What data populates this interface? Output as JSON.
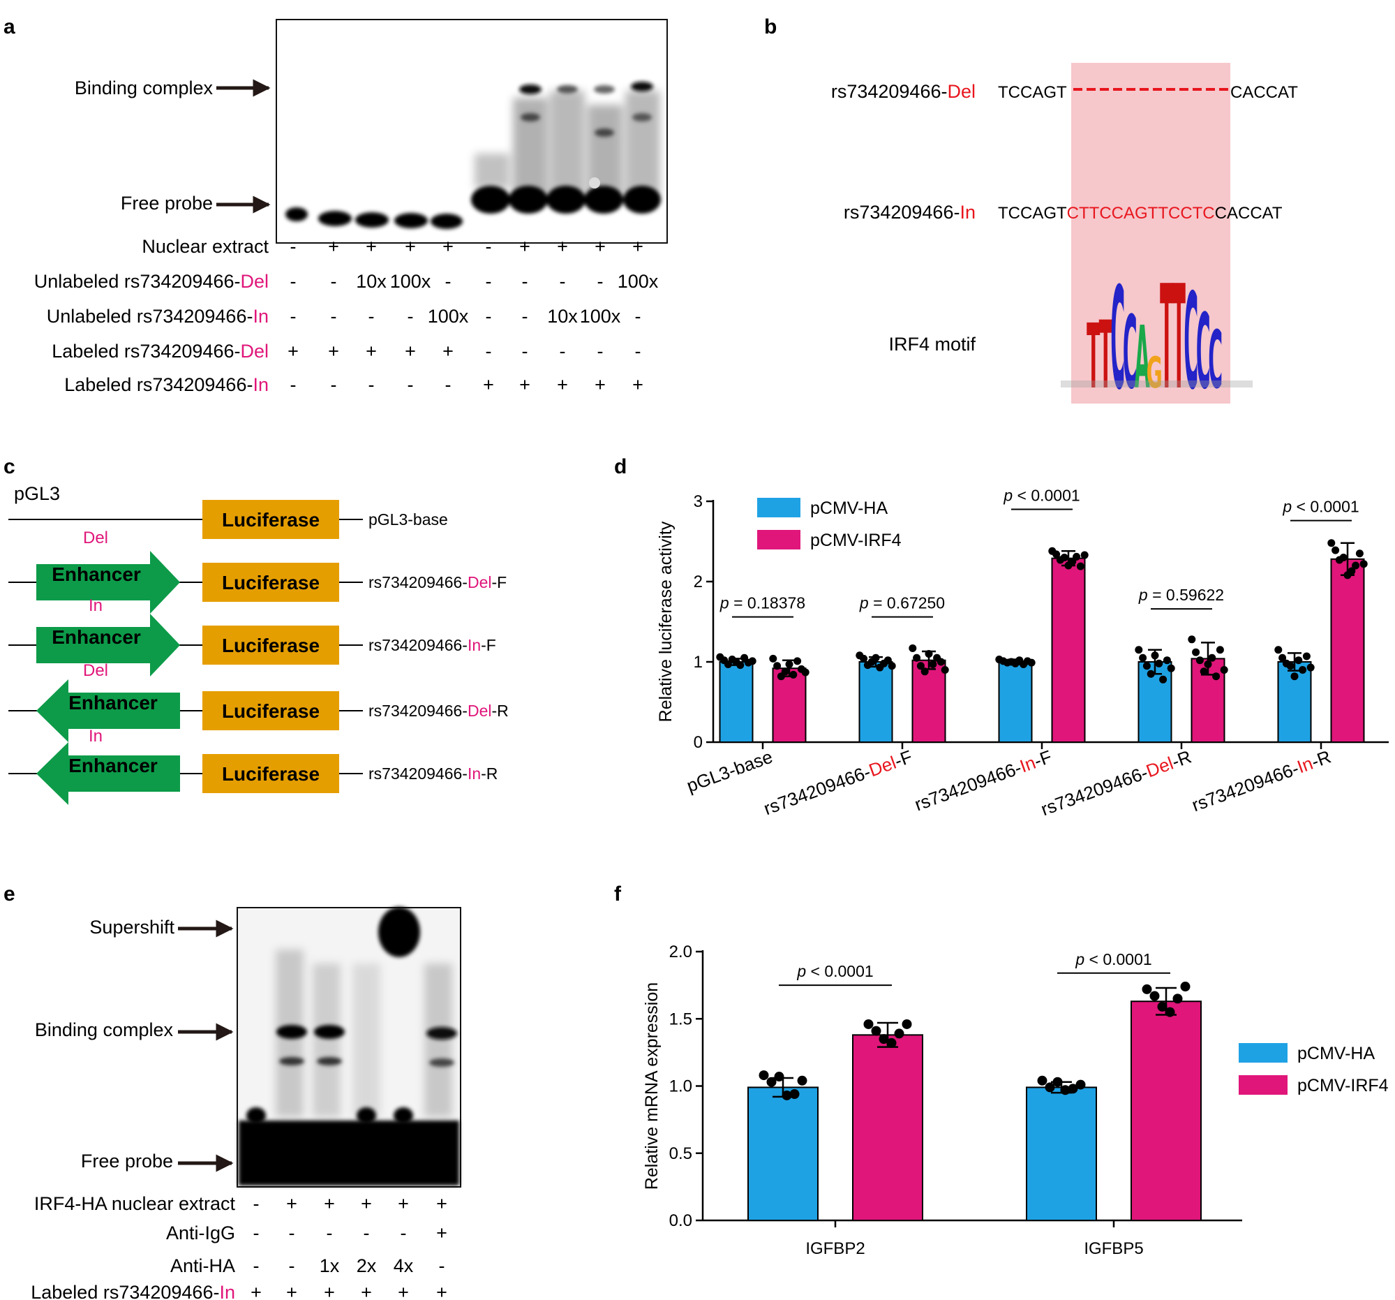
{
  "panel_labels": {
    "a": "a",
    "b": "b",
    "c": "c",
    "d": "d",
    "e": "e",
    "f": "f"
  },
  "colors": {
    "blue": "#1FA2E4",
    "magenta": "#E0167A",
    "red": "#E8161E",
    "gold": "#E59E00",
    "green": "#0D9B49",
    "hilite": "#F6C7CB"
  },
  "panel_a": {
    "arrows": {
      "binding": "Binding complex",
      "free": "Free probe"
    },
    "row_labels": [
      {
        "pre": "Nuclear extract",
        "hl": "",
        "post": ""
      },
      {
        "pre": "Unlabeled rs734209466-",
        "hl": "Del",
        "post": ""
      },
      {
        "pre": "Unlabeled rs734209466-",
        "hl": "In",
        "post": ""
      },
      {
        "pre": "Labeled rs734209466-",
        "hl": "Del",
        "post": ""
      },
      {
        "pre": "Labeled rs734209466-",
        "hl": "In",
        "post": ""
      }
    ],
    "lane_values": [
      [
        "-",
        "+",
        "+",
        "+",
        "+",
        "-",
        "+",
        "+",
        "+",
        "+"
      ],
      [
        "-",
        "-",
        "10x",
        "100x",
        "-",
        "-",
        "-",
        "-",
        "-",
        "100x"
      ],
      [
        "-",
        "-",
        "-",
        "-",
        "100x",
        "-",
        "-",
        "10x",
        "100x",
        "-"
      ],
      [
        "+",
        "+",
        "+",
        "+",
        "+",
        "-",
        "-",
        "-",
        "-",
        "-"
      ],
      [
        "-",
        "-",
        "-",
        "-",
        "-",
        "+",
        "+",
        "+",
        "+",
        "+"
      ]
    ]
  },
  "panel_b": {
    "seq_del": {
      "label_pre": "rs734209466-",
      "label_hl": "Del",
      "left": "TCCAGT",
      "right": "CACCAT"
    },
    "seq_in": {
      "label_pre": "rs734209466-",
      "label_hl": "In",
      "left": "TCCAGT",
      "insert": "CTTCCAGTTCCTC",
      "right": "CACCAT"
    },
    "motif_label": "IRF4 motif",
    "motif_letters": [
      "T",
      "T",
      "C",
      "C",
      "A",
      "G",
      "T",
      "T",
      "C",
      "C",
      "C"
    ]
  },
  "panel_c": {
    "vector_label": "pGL3",
    "luciferase": "Luciferase",
    "enhancer": "Enhancer",
    "constructs": [
      {
        "name_pre": "pGL3-base",
        "name_hl": "",
        "name_post": "",
        "allele": "",
        "dir": "none"
      },
      {
        "name_pre": "rs734209466-",
        "name_hl": "Del",
        "name_post": "-F",
        "allele": "Del",
        "dir": "F"
      },
      {
        "name_pre": "rs734209466-",
        "name_hl": "In",
        "name_post": "-F",
        "allele": "In",
        "dir": "F"
      },
      {
        "name_pre": "rs734209466-",
        "name_hl": "Del",
        "name_post": "-R",
        "allele": "Del",
        "dir": "R"
      },
      {
        "name_pre": "rs734209466-",
        "name_hl": "In",
        "name_post": "-R",
        "allele": "In",
        "dir": "R"
      }
    ]
  },
  "panel_e": {
    "arrows": {
      "supershift": "Supershift",
      "binding": "Binding complex",
      "free": "Free probe"
    },
    "row_labels": [
      {
        "pre": "IRF4-HA nuclear extract",
        "hl": ""
      },
      {
        "pre": "Anti-IgG",
        "hl": ""
      },
      {
        "pre": "Anti-HA",
        "hl": ""
      },
      {
        "pre": "Labeled rs734209466-",
        "hl": "In"
      }
    ],
    "lane_values": [
      [
        "-",
        "+",
        "+",
        "+",
        "+",
        "+"
      ],
      [
        "-",
        "-",
        "-",
        "-",
        "-",
        "+"
      ],
      [
        "-",
        "-",
        "1x",
        "2x",
        "4x",
        "-"
      ],
      [
        "+",
        "+",
        "+",
        "+",
        "+",
        "+"
      ]
    ]
  },
  "chart_data": [
    {
      "id": "d",
      "type": "bar",
      "ylabel": "Relative luciferase activity",
      "ylim": [
        0,
        3
      ],
      "yticks": [
        "0",
        "1",
        "2",
        "3"
      ],
      "categories": [
        {
          "pre": "pGL3-base",
          "hl": "",
          "post": ""
        },
        {
          "pre": "rs734209466-",
          "hl": "Del",
          "post": "-F"
        },
        {
          "pre": "rs734209466-",
          "hl": "In",
          "post": "-F"
        },
        {
          "pre": "rs734209466-",
          "hl": "Del",
          "post": "-R"
        },
        {
          "pre": "rs734209466-",
          "hl": "In",
          "post": "-R"
        }
      ],
      "series": [
        {
          "name": "pCMV-HA",
          "values": [
            1.0,
            1.0,
            1.0,
            1.0,
            1.0
          ],
          "errors": [
            0.04,
            0.06,
            0.03,
            0.15,
            0.11
          ]
        },
        {
          "name": "pCMV-IRF4",
          "values": [
            0.92,
            1.02,
            2.29,
            1.04,
            2.28
          ],
          "errors": [
            0.1,
            0.11,
            0.09,
            0.2,
            0.2
          ]
        }
      ],
      "points": [
        [
          [
            1.06,
            1.02,
            0.97,
            1.03,
            1.0,
            0.96,
            1.05,
            0.99,
            1.01
          ],
          [
            1.04,
            0.95,
            0.82,
            0.88,
            0.97,
            0.84,
            1.01,
            0.91,
            0.87
          ]
        ],
        [
          [
            1.08,
            1.04,
            0.96,
            1.0,
            1.05,
            0.93,
            0.98,
            1.02,
            0.95
          ],
          [
            1.17,
            1.05,
            0.95,
            0.88,
            1.1,
            0.97,
            1.05,
            1.0,
            0.9
          ]
        ],
        [
          [
            1.03,
            1.01,
            0.99,
            1.0,
            0.98,
            1.02,
            0.97,
            1.01,
            0.99
          ],
          [
            2.38,
            2.34,
            2.27,
            2.3,
            2.2,
            2.25,
            2.31,
            2.19,
            2.33
          ]
        ],
        [
          [
            1.15,
            1.05,
            0.95,
            0.85,
            1.08,
            0.98,
            0.78,
            1.02,
            0.92
          ],
          [
            1.28,
            1.12,
            1.02,
            0.88,
            0.97,
            1.05,
            0.82,
            1.15,
            0.9
          ]
        ],
        [
          [
            1.15,
            1.05,
            0.98,
            0.95,
            0.82,
            1.02,
            0.9,
            1.07,
            0.93
          ],
          [
            2.48,
            2.39,
            2.27,
            2.3,
            2.08,
            2.13,
            2.2,
            2.35,
            2.22
          ]
        ]
      ],
      "pvalues": [
        "p = 0.18378",
        "p = 0.67250",
        "p < 0.0001",
        "p = 0.59622",
        "p < 0.0001"
      ],
      "p_levels": [
        1.56,
        1.56,
        2.9,
        1.66,
        2.76
      ],
      "legend": [
        "pCMV-HA",
        "pCMV-IRF4"
      ],
      "legend_position": "top-left"
    },
    {
      "id": "f",
      "type": "bar",
      "ylabel": "Relative mRNA expression",
      "ylim": [
        0,
        2
      ],
      "yticks": [
        "0.0",
        "0.5",
        "1.0",
        "1.5",
        "2.0"
      ],
      "categories": [
        "IGFBP2",
        "IGFBP5"
      ],
      "series": [
        {
          "name": "pCMV-HA",
          "values": [
            0.99,
            0.99
          ],
          "errors": [
            0.07,
            0.04
          ]
        },
        {
          "name": "pCMV-IRF4",
          "values": [
            1.38,
            1.63
          ],
          "errors": [
            0.09,
            0.1
          ]
        }
      ],
      "points": [
        [
          [
            1.08,
            1.03,
            1.07,
            0.93,
            0.94,
            1.04
          ],
          [
            1.46,
            1.41,
            1.35,
            1.32,
            1.39,
            1.46
          ]
        ],
        [
          [
            1.04,
            0.99,
            1.03,
            0.97,
            0.98,
            1.01
          ],
          [
            1.72,
            1.67,
            1.59,
            1.55,
            1.65,
            1.74
          ]
        ]
      ],
      "pvalues": [
        "p < 0.0001",
        "p < 0.0001"
      ],
      "p_levels": [
        1.75,
        1.84
      ],
      "legend": [
        "pCMV-HA",
        "pCMV-IRF4"
      ],
      "legend_position": "right"
    }
  ]
}
